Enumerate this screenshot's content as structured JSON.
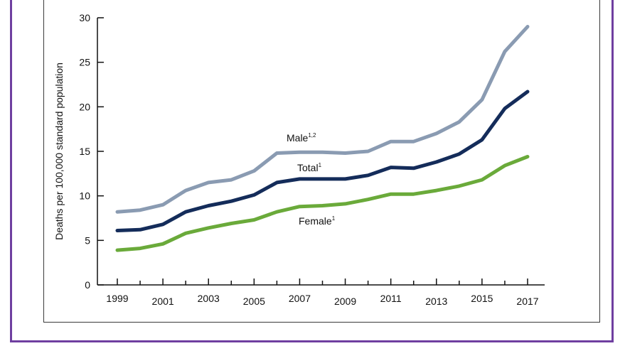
{
  "chart_data": {
    "type": "line",
    "title": "",
    "xlabel": "",
    "ylabel": "Deaths per 100,000 standard population",
    "xlim": [
      1999,
      2017
    ],
    "ylim": [
      0,
      30
    ],
    "yticks": [
      0,
      5,
      10,
      15,
      20,
      25,
      30
    ],
    "xticks": [
      1999,
      2001,
      2003,
      2005,
      2007,
      2009,
      2011,
      2013,
      2015,
      2017
    ],
    "x": [
      1999,
      2000,
      2001,
      2002,
      2003,
      2004,
      2005,
      2006,
      2007,
      2008,
      2009,
      2010,
      2011,
      2012,
      2013,
      2014,
      2015,
      2016,
      2017
    ],
    "grid": false,
    "legend": "inline labels",
    "series": [
      {
        "name": "Male",
        "superscript": "1,2",
        "color": "#8a9bb2",
        "values": [
          8.2,
          8.4,
          9.0,
          10.6,
          11.5,
          11.8,
          12.8,
          14.8,
          14.9,
          14.9,
          14.8,
          15.0,
          16.1,
          16.1,
          17.0,
          18.3,
          20.8,
          26.2,
          29.0
        ]
      },
      {
        "name": "Total",
        "superscript": "1",
        "color": "#142c5a",
        "values": [
          6.1,
          6.2,
          6.8,
          8.2,
          8.9,
          9.4,
          10.1,
          11.5,
          11.9,
          11.9,
          11.9,
          12.3,
          13.2,
          13.1,
          13.8,
          14.7,
          16.3,
          19.8,
          21.7
        ]
      },
      {
        "name": "Female",
        "superscript": "1",
        "color": "#6aaa3a",
        "values": [
          3.9,
          4.1,
          4.6,
          5.8,
          6.4,
          6.9,
          7.3,
          8.2,
          8.8,
          8.9,
          9.1,
          9.6,
          10.2,
          10.2,
          10.6,
          11.1,
          11.8,
          13.4,
          14.4
        ]
      }
    ]
  }
}
